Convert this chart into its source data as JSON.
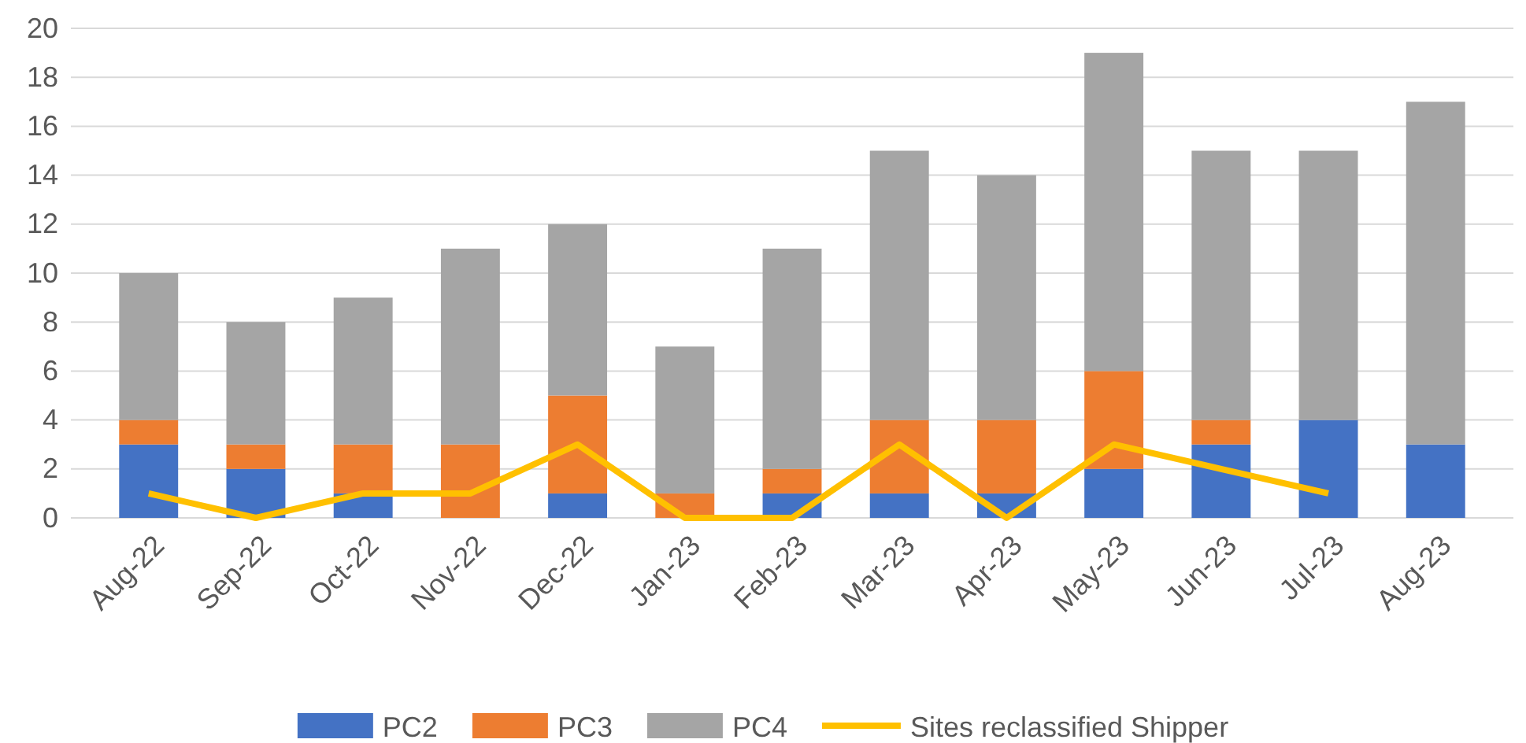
{
  "chart_data": {
    "type": "bar",
    "stacked": true,
    "categories": [
      "Aug-22",
      "Sep-22",
      "Oct-22",
      "Nov-22",
      "Dec-22",
      "Jan-23",
      "Feb-23",
      "Mar-23",
      "Apr-23",
      "May-23",
      "Jun-23",
      "Jul-23",
      "Aug-23"
    ],
    "series": [
      {
        "name": "PC2",
        "color": "#4472c4",
        "values": [
          3,
          2,
          1,
          0,
          1,
          0,
          1,
          1,
          1,
          2,
          3,
          4,
          3
        ]
      },
      {
        "name": "PC3",
        "color": "#ed7d31",
        "values": [
          1,
          1,
          2,
          3,
          4,
          1,
          1,
          3,
          3,
          4,
          1,
          0,
          0
        ]
      },
      {
        "name": "PC4",
        "color": "#a5a5a5",
        "values": [
          6,
          5,
          6,
          8,
          7,
          6,
          9,
          11,
          10,
          13,
          11,
          11,
          14
        ]
      },
      {
        "name": "Sites reclassified Shipper",
        "type": "line",
        "color": "#ffc000",
        "values": [
          1,
          0,
          1,
          1,
          3,
          0,
          0,
          3,
          0,
          3,
          2,
          1,
          null
        ]
      }
    ],
    "ylim": [
      0,
      20
    ],
    "yticks": [
      0,
      2,
      4,
      6,
      8,
      10,
      12,
      14,
      16,
      18,
      20
    ],
    "grid": "y",
    "legend": "bottom",
    "marker": "none",
    "line_style": "solid"
  }
}
